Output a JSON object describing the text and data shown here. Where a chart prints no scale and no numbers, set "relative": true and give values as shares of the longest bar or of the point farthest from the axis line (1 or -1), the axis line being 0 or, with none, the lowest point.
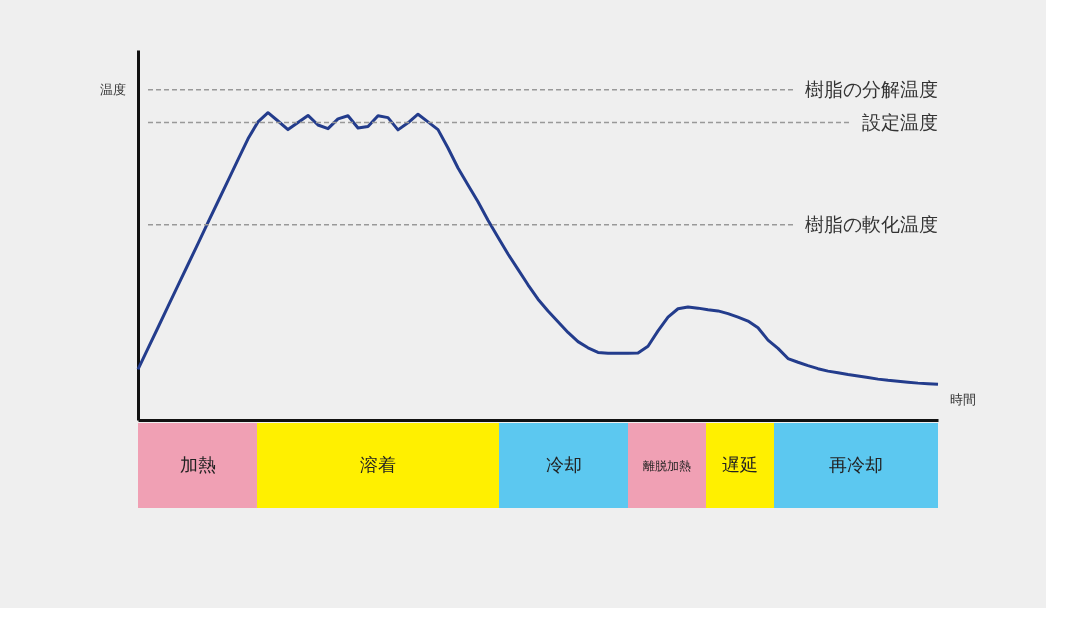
{
  "chart_data": {
    "type": "line",
    "relative": true,
    "xlabel": "時間",
    "ylabel": "温度",
    "tick_labels": false,
    "grid": false,
    "legend": false,
    "marker": "none",
    "line_style": "solid",
    "categories": [
      null,
      null,
      null,
      null,
      null,
      null,
      null,
      null,
      null,
      null,
      null,
      null,
      null,
      null,
      null,
      null,
      null,
      null,
      null,
      null,
      null,
      null,
      null,
      null,
      null,
      null,
      null,
      null,
      null,
      null,
      null,
      null,
      null,
      null,
      null,
      null,
      null,
      null,
      null,
      null,
      null,
      null,
      null,
      null,
      null,
      null,
      null,
      null,
      null,
      null,
      null,
      null,
      null,
      null,
      null,
      null,
      null,
      null,
      null,
      null,
      null,
      null,
      null,
      null,
      null,
      null,
      null,
      null,
      null,
      null,
      null,
      null,
      null,
      null,
      null,
      null,
      null,
      null,
      null,
      null,
      null
    ],
    "series": [
      {
        "color": "#233c8c",
        "values": [
          0.165,
          0.233,
          0.301,
          0.37,
          0.438,
          0.506,
          0.574,
          0.643,
          0.711,
          0.779,
          0.847,
          0.915,
          0.97,
          1.0,
          0.973,
          0.945,
          0.968,
          0.991,
          0.96,
          0.948,
          0.98,
          0.99,
          0.95,
          0.955,
          0.99,
          0.984,
          0.944,
          0.967,
          0.995,
          0.97,
          0.945,
          0.885,
          0.82,
          0.765,
          0.71,
          0.65,
          0.595,
          0.54,
          0.49,
          0.44,
          0.393,
          0.355,
          0.32,
          0.285,
          0.255,
          0.235,
          0.22,
          0.217,
          0.217,
          0.217,
          0.218,
          0.24,
          0.29,
          0.335,
          0.362,
          0.368,
          0.364,
          0.359,
          0.355,
          0.346,
          0.335,
          0.322,
          0.3,
          0.26,
          0.233,
          0.2,
          0.188,
          0.177,
          0.167,
          0.159,
          0.154,
          0.148,
          0.143,
          0.138,
          0.133,
          0.129,
          0.126,
          0.123,
          0.12,
          0.118,
          0.116
        ]
      }
    ],
    "ref_lines": [
      {
        "axis": "y",
        "value": 1.075,
        "label": "樹脂の分解温度",
        "color": "#999999",
        "line_style": "dashed"
      },
      {
        "axis": "y",
        "value": 0.968,
        "label": "設定温度",
        "color": "#999999",
        "line_style": "dashed"
      },
      {
        "axis": "y",
        "value": 0.635,
        "label": "樹脂の軟化温度",
        "color": "#999999",
        "line_style": "dashed"
      }
    ],
    "annotations": [
      "加熱",
      "溶着",
      "冷却",
      "離脱加熱",
      "遅延",
      "再冷却"
    ]
  }
}
